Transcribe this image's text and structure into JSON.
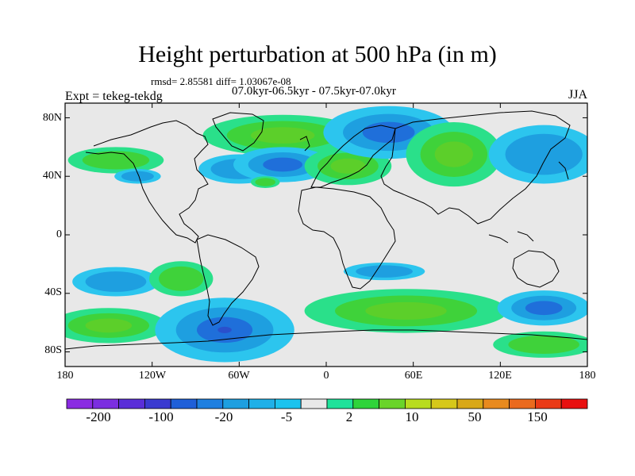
{
  "map": {
    "title": "Height perturbation at 500 hPa (in m)",
    "stats": "rmsd= 2.85581 diff= 1.03067e-08",
    "period": "07.0kyr-06.5kyr - 07.5kyr-07.0kyr",
    "experiment": "Expt = tekeg-tekdg",
    "season": "JJA",
    "lat_labels": [
      "80N",
      "40N",
      "0",
      "40S",
      "80S"
    ],
    "lon_labels": [
      "180",
      "120W",
      "60W",
      "0",
      "60E",
      "120E",
      "180"
    ],
    "extent": {
      "lon": [
        -180,
        180
      ],
      "lat": [
        -90,
        90
      ]
    },
    "background_color": "#e8e8e8"
  },
  "colorbar": {
    "labels": [
      "-200",
      "-100",
      "-20",
      "-5",
      "2",
      "10",
      "50",
      "150"
    ],
    "colors": [
      "#8a2be2",
      "#7b2ee0",
      "#5a2ed8",
      "#3a3ad0",
      "#1f5fd8",
      "#1e7fe0",
      "#1e9fe0",
      "#1fb0e8",
      "#1cc3ee",
      "#e8e8e8",
      "#1fe29a",
      "#2fd43a",
      "#6ad42a",
      "#b8dc1e",
      "#d6c81a",
      "#d8a818",
      "#e88a1e",
      "#ea6a1e",
      "#ea3a16",
      "#e81010"
    ]
  },
  "anomalies": [
    {
      "name": "north-america-arctic-positive",
      "sign": "positive",
      "lon": -30,
      "lat": 68,
      "rx": 55,
      "ry": 14,
      "level": 2
    },
    {
      "name": "north-pacific-positive",
      "sign": "positive",
      "lon": -145,
      "lat": 51,
      "rx": 33,
      "ry": 9,
      "level": 1
    },
    {
      "name": "east-pacific-negative",
      "sign": "negative",
      "lon": -130,
      "lat": 40,
      "rx": 16,
      "ry": 5,
      "level": 1
    },
    {
      "name": "west-atlantic-negative",
      "sign": "negative",
      "lon": -60,
      "lat": 45,
      "rx": 28,
      "ry": 10,
      "level": 1
    },
    {
      "name": "mid-atlantic-negative",
      "sign": "negative",
      "lon": -30,
      "lat": 48,
      "rx": 34,
      "ry": 12,
      "level": 2
    },
    {
      "name": "atlantic-positive-small",
      "sign": "positive",
      "lon": -42,
      "lat": 36,
      "rx": 10,
      "ry": 4,
      "level": 1
    },
    {
      "name": "europe-positive",
      "sign": "positive",
      "lon": 15,
      "lat": 47,
      "rx": 30,
      "ry": 13,
      "level": 2
    },
    {
      "name": "siberia-negative",
      "sign": "negative",
      "lon": 43,
      "lat": 70,
      "rx": 45,
      "ry": 18,
      "level": 2
    },
    {
      "name": "central-asia-positive",
      "sign": "positive",
      "lon": 88,
      "lat": 55,
      "rx": 33,
      "ry": 22,
      "level": 2
    },
    {
      "name": "east-asia-negative",
      "sign": "negative",
      "lon": 150,
      "lat": 55,
      "rx": 38,
      "ry": 20,
      "level": 1
    },
    {
      "name": "south-pacific-negative",
      "sign": "negative",
      "lon": -145,
      "lat": -32,
      "rx": 30,
      "ry": 10,
      "level": 1
    },
    {
      "name": "south-pacific-positive-west",
      "sign": "positive",
      "lon": -150,
      "lat": -62,
      "rx": 40,
      "ry": 12,
      "level": 2
    },
    {
      "name": "south-america-positive",
      "sign": "positive",
      "lon": -100,
      "lat": -30,
      "rx": 22,
      "ry": 12,
      "level": 1
    },
    {
      "name": "antarctic-negative",
      "sign": "negative",
      "lon": -70,
      "lat": -65,
      "rx": 48,
      "ry": 22,
      "level": 3
    },
    {
      "name": "south-atlantic-positive",
      "sign": "positive",
      "lon": 55,
      "lat": -52,
      "rx": 70,
      "ry": 15,
      "level": 2
    },
    {
      "name": "south-indian-positive",
      "sign": "positive",
      "lon": 150,
      "lat": -75,
      "rx": 35,
      "ry": 9,
      "level": 1
    },
    {
      "name": "southern-ocean-negative",
      "sign": "negative",
      "lon": 150,
      "lat": -50,
      "rx": 32,
      "ry": 12,
      "level": 2
    },
    {
      "name": "indian-ocean-negative",
      "sign": "negative",
      "lon": 40,
      "lat": -25,
      "rx": 28,
      "ry": 6,
      "level": 1
    }
  ]
}
